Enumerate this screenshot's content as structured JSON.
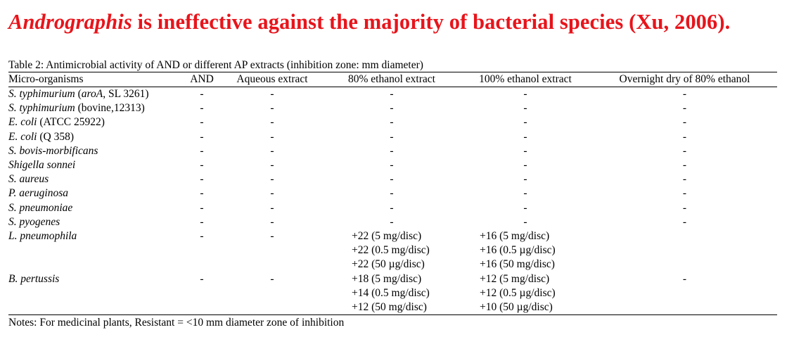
{
  "title": {
    "genus": "Andrographis",
    "rest": " is ineffective against the majority of bacterial species (Xu, 2006)."
  },
  "table": {
    "caption": "Table 2: Antimicrobial activity of AND or different AP extracts (inhibition zone: mm diameter)",
    "headers": [
      "Micro-organisms",
      "AND",
      "Aqueous extract",
      "80% ethanol extract",
      "100% ethanol extract",
      "Overnight dry of 80% ethanol"
    ],
    "rows": [
      {
        "name": "S. typhimurium",
        "detail": " (",
        "detail_italic": "aroA",
        "detail_tail": ", SL 3261)",
        "values": [
          "-",
          "-",
          "-",
          "-",
          "-"
        ]
      },
      {
        "name": "S. typhimurium",
        "detail": " (bovine,12313)",
        "values": [
          "-",
          "-",
          "-",
          "-",
          "-"
        ]
      },
      {
        "name": "E. coli",
        "detail": " (ATCC 25922)",
        "values": [
          "-",
          "-",
          "-",
          "-",
          "-"
        ]
      },
      {
        "name": "E. coli",
        "detail": " (Q 358)",
        "values": [
          "-",
          "-",
          "-",
          "-",
          "-"
        ]
      },
      {
        "name": "S. bovis-morbificans",
        "values": [
          "-",
          "-",
          "-",
          "-",
          "-"
        ]
      },
      {
        "name": "Shigella sonnei",
        "values": [
          "-",
          "-",
          "-",
          "-",
          "-"
        ]
      },
      {
        "name": "S. aureus",
        "values": [
          "-",
          "-",
          "-",
          "-",
          "-"
        ]
      },
      {
        "name": "P. aeruginosa",
        "values": [
          "-",
          "-",
          "-",
          "-",
          "-"
        ]
      },
      {
        "name": "S. pneumoniae",
        "values": [
          "-",
          "-",
          "-",
          "-",
          "-"
        ]
      },
      {
        "name": "S. pyogenes",
        "values": [
          "-",
          "-",
          "-",
          "-",
          "-"
        ]
      },
      {
        "name": "L. pneumophila",
        "values": [
          "-",
          "-",
          "+22 (5 mg/disc)",
          "+16 (5 mg/disc)",
          ""
        ]
      },
      {
        "name": "",
        "values": [
          "",
          "",
          "+22 (0.5 mg/disc)",
          "+16 (0.5 µg/disc)",
          ""
        ]
      },
      {
        "name": "",
        "values": [
          "",
          "",
          "+22 (50 µg/disc)",
          "+16 (50 mg/disc)",
          ""
        ]
      },
      {
        "name": "B. pertussis",
        "values": [
          "-",
          "-",
          "+18 (5 mg/disc)",
          "+12 (5 mg/disc)",
          "-"
        ]
      },
      {
        "name": "",
        "values": [
          "",
          "",
          "+14 (0.5 mg/disc)",
          "+12 (0.5 µg/disc)",
          ""
        ]
      },
      {
        "name": "",
        "values": [
          "",
          "",
          "+12 (50 mg/disc)",
          "+10 (50 µg/disc)",
          ""
        ]
      }
    ],
    "notes": "Notes: For medicinal plants, Resistant = <10 mm diameter zone of inhibition"
  }
}
